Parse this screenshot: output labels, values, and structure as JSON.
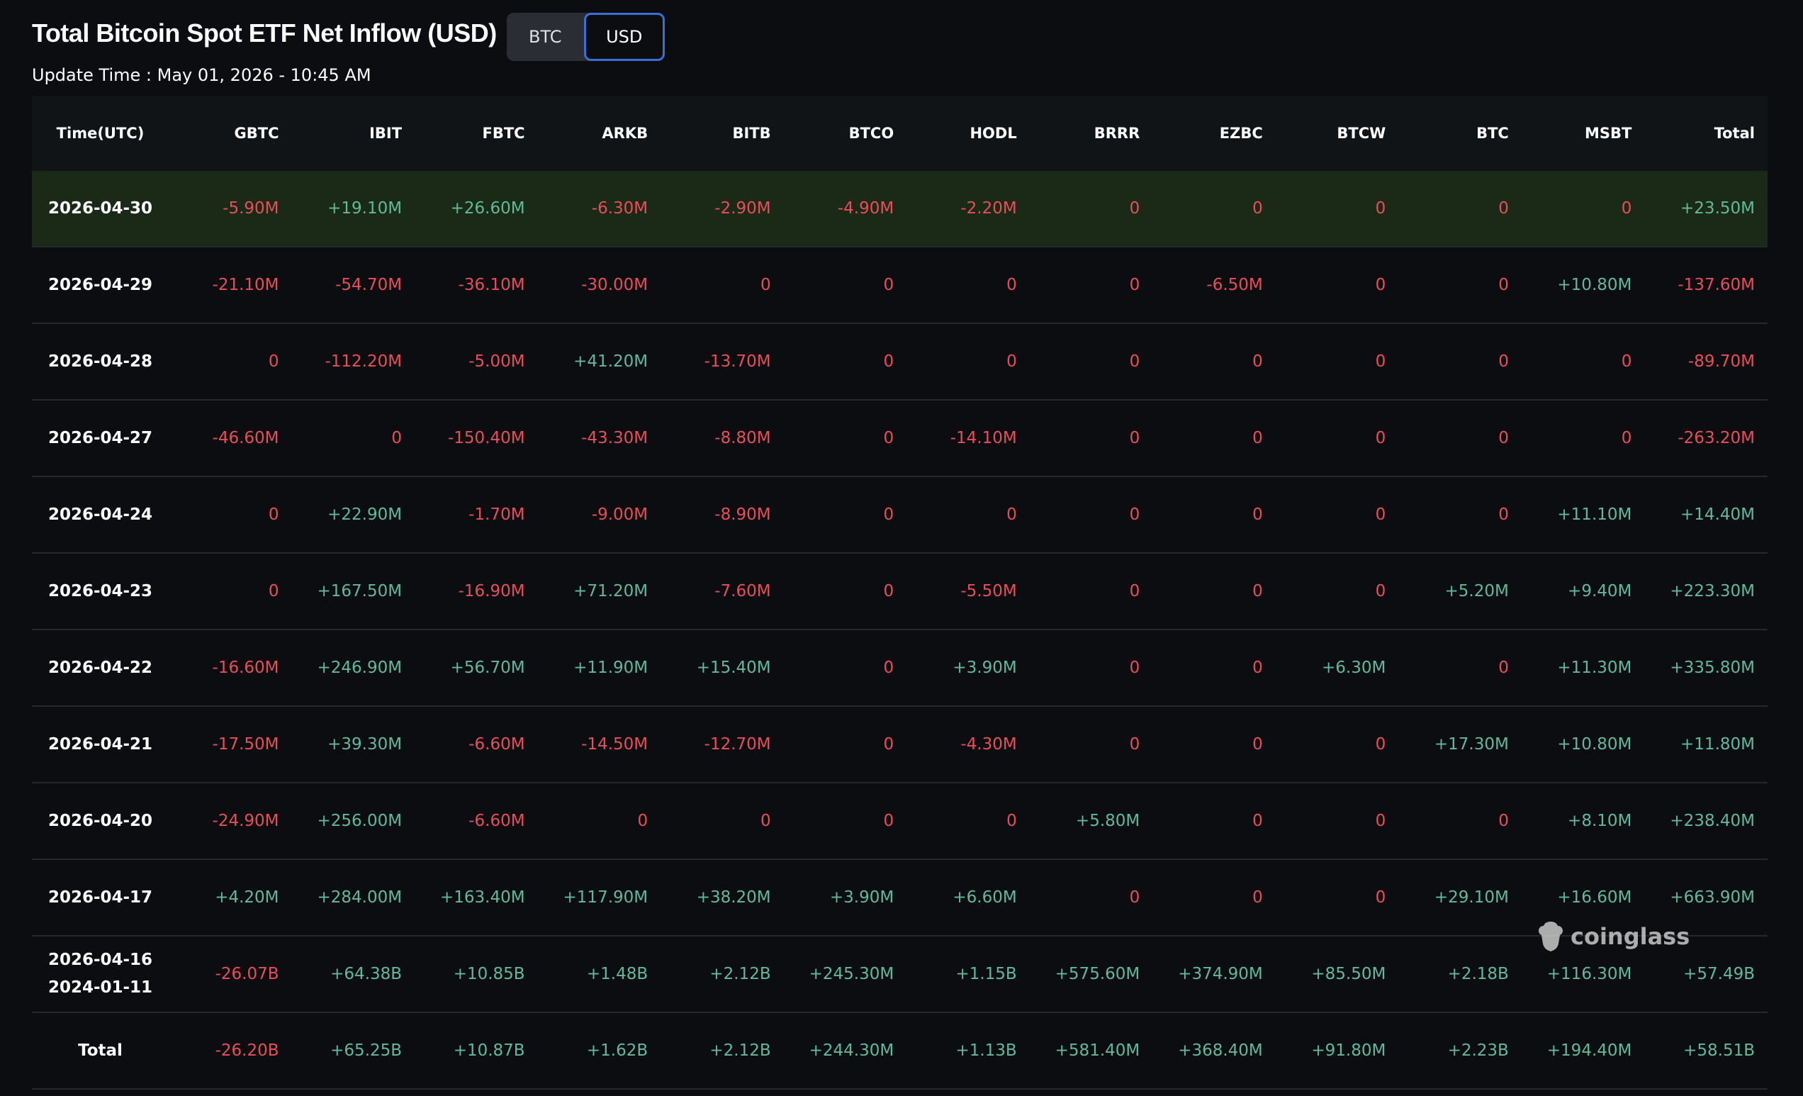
{
  "header": {
    "title": "Total Bitcoin Spot ETF Net Inflow (USD)",
    "toggle": [
      "BTC",
      "USD"
    ],
    "update_time": "Update Time : May 01, 2026 - 10:45 AM"
  },
  "table": {
    "columns": [
      "Time(UTC)",
      "GBTC",
      "IBIT",
      "FBTC",
      "ARKB",
      "BITB",
      "BTCO",
      "HODL",
      "BRRR",
      "EZBC",
      "BTCW",
      "BTC",
      "MSBT",
      "Total"
    ],
    "rows": [
      {
        "time": "2026-04-30",
        "values": [
          "-5.90M",
          "+19.10M",
          "+26.60M",
          "-6.30M",
          "-2.90M",
          "-4.90M",
          "-2.20M",
          "0",
          "0",
          "0",
          "0",
          "0",
          "+23.50M"
        ]
      },
      {
        "time": "2026-04-29",
        "values": [
          "-21.10M",
          "-54.70M",
          "-36.10M",
          "-30.00M",
          "0",
          "0",
          "0",
          "0",
          "-6.50M",
          "0",
          "0",
          "+10.80M",
          "-137.60M"
        ]
      },
      {
        "time": "2026-04-28",
        "values": [
          "0",
          "-112.20M",
          "-5.00M",
          "+41.20M",
          "-13.70M",
          "0",
          "0",
          "0",
          "0",
          "0",
          "0",
          "0",
          "-89.70M"
        ]
      },
      {
        "time": "2026-04-27",
        "values": [
          "-46.60M",
          "0",
          "-150.40M",
          "-43.30M",
          "-8.80M",
          "0",
          "-14.10M",
          "0",
          "0",
          "0",
          "0",
          "0",
          "-263.20M"
        ]
      },
      {
        "time": "2026-04-24",
        "values": [
          "0",
          "+22.90M",
          "-1.70M",
          "-9.00M",
          "-8.90M",
          "0",
          "0",
          "0",
          "0",
          "0",
          "0",
          "+11.10M",
          "+14.40M"
        ]
      },
      {
        "time": "2026-04-23",
        "values": [
          "0",
          "+167.50M",
          "-16.90M",
          "+71.20M",
          "-7.60M",
          "0",
          "-5.50M",
          "0",
          "0",
          "0",
          "+5.20M",
          "+9.40M",
          "+223.30M"
        ]
      },
      {
        "time": "2026-04-22",
        "values": [
          "-16.60M",
          "+246.90M",
          "+56.70M",
          "+11.90M",
          "+15.40M",
          "0",
          "+3.90M",
          "0",
          "0",
          "+6.30M",
          "0",
          "+11.30M",
          "+335.80M"
        ]
      },
      {
        "time": "2026-04-21",
        "values": [
          "-17.50M",
          "+39.30M",
          "-6.60M",
          "-14.50M",
          "-12.70M",
          "0",
          "-4.30M",
          "0",
          "0",
          "0",
          "+17.30M",
          "+10.80M",
          "+11.80M"
        ]
      },
      {
        "time": "2026-04-20",
        "values": [
          "-24.90M",
          "+256.00M",
          "-6.60M",
          "0",
          "0",
          "0",
          "0",
          "+5.80M",
          "0",
          "0",
          "0",
          "+8.10M",
          "+238.40M"
        ]
      },
      {
        "time": "2026-04-17",
        "values": [
          "+4.20M",
          "+284.00M",
          "+163.40M",
          "+117.90M",
          "+38.20M",
          "+3.90M",
          "+6.60M",
          "0",
          "0",
          "0",
          "+29.10M",
          "+16.60M",
          "+663.90M"
        ]
      },
      {
        "time": [
          "2026-04-16",
          "2024-01-11"
        ],
        "values": [
          "-26.07B",
          "+64.38B",
          "+10.85B",
          "+1.48B",
          "+2.12B",
          "+245.30M",
          "+1.15B",
          "+575.60M",
          "+374.90M",
          "+85.50M",
          "+2.18B",
          "+116.30M",
          "+57.49B"
        ]
      },
      {
        "time": "Total",
        "values": [
          "-26.20B",
          "+65.25B",
          "+10.87B",
          "+1.62B",
          "+2.12B",
          "+244.30M",
          "+1.13B",
          "+581.40M",
          "+368.40M",
          "+91.80M",
          "+2.23B",
          "+194.40M",
          "+58.51B"
        ]
      }
    ]
  },
  "watermark": "coinglass"
}
